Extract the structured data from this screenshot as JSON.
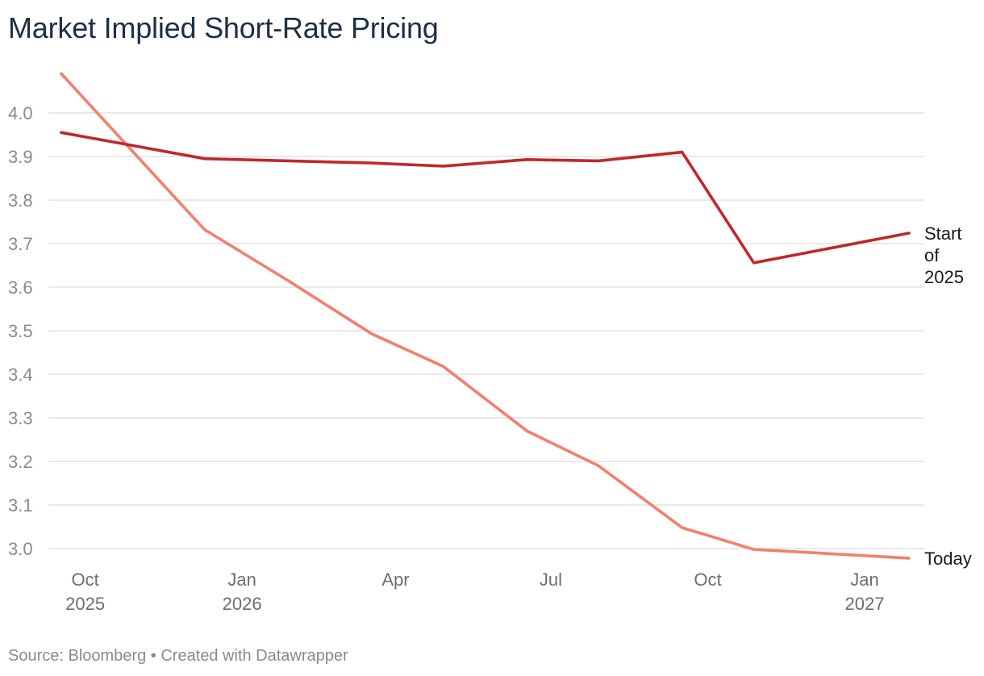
{
  "chart_data": {
    "type": "line",
    "title": "Market Implied Short-Rate Pricing",
    "footer": {
      "source": "Source: Bloomberg",
      "separator": "•",
      "credit": "Created with Datawrapper"
    },
    "y_axis": {
      "min": 3.0,
      "max": 4.0,
      "ticks": [
        "4.0",
        "3.9",
        "3.8",
        "3.7",
        "3.6",
        "3.5",
        "3.4",
        "3.3",
        "3.2",
        "3.1",
        "3.0"
      ],
      "tick_values": [
        4.0,
        3.9,
        3.8,
        3.7,
        3.6,
        3.5,
        3.4,
        3.3,
        3.2,
        3.1,
        3.0
      ]
    },
    "x_axis": {
      "ticks": [
        {
          "label": "Oct",
          "year": "2025",
          "date": "2025-10-01"
        },
        {
          "label": "Jan",
          "year": "2026",
          "date": "2026-01-01"
        },
        {
          "label": "Apr",
          "year": "",
          "date": "2026-04-01"
        },
        {
          "label": "Jul",
          "year": "",
          "date": "2026-07-01"
        },
        {
          "label": "Oct",
          "year": "",
          "date": "2026-10-01"
        },
        {
          "label": "Jan",
          "year": "2027",
          "date": "2027-01-01"
        }
      ]
    },
    "grid": true,
    "series": [
      {
        "name": "Start of 2025",
        "label_lines": [
          "Start",
          "of",
          "2025"
        ],
        "color": "#c1272d",
        "points": [
          {
            "x": "2025-09-17",
            "y": 3.955
          },
          {
            "x": "2025-12-10",
            "y": 3.895
          },
          {
            "x": "2026-01-28",
            "y": 3.89
          },
          {
            "x": "2026-03-18",
            "y": 3.885
          },
          {
            "x": "2026-04-29",
            "y": 3.878
          },
          {
            "x": "2026-06-17",
            "y": 3.893
          },
          {
            "x": "2026-07-29",
            "y": 3.89
          },
          {
            "x": "2026-09-16",
            "y": 3.91
          },
          {
            "x": "2026-10-28",
            "y": 3.656
          },
          {
            "x": "2027-01-27",
            "y": 3.724
          }
        ]
      },
      {
        "name": "Today",
        "label_lines": [
          "Today"
        ],
        "color": "#f47f6b",
        "points": [
          {
            "x": "2025-09-17",
            "y": 4.09
          },
          {
            "x": "2025-12-10",
            "y": 3.732
          },
          {
            "x": "2026-01-28",
            "y": 3.615
          },
          {
            "x": "2026-03-18",
            "y": 3.493
          },
          {
            "x": "2026-04-29",
            "y": 3.418
          },
          {
            "x": "2026-06-17",
            "y": 3.27
          },
          {
            "x": "2026-07-29",
            "y": 3.19
          },
          {
            "x": "2026-09-16",
            "y": 3.048
          },
          {
            "x": "2026-10-28",
            "y": 2.998
          },
          {
            "x": "2027-01-27",
            "y": 2.978
          }
        ]
      }
    ]
  }
}
